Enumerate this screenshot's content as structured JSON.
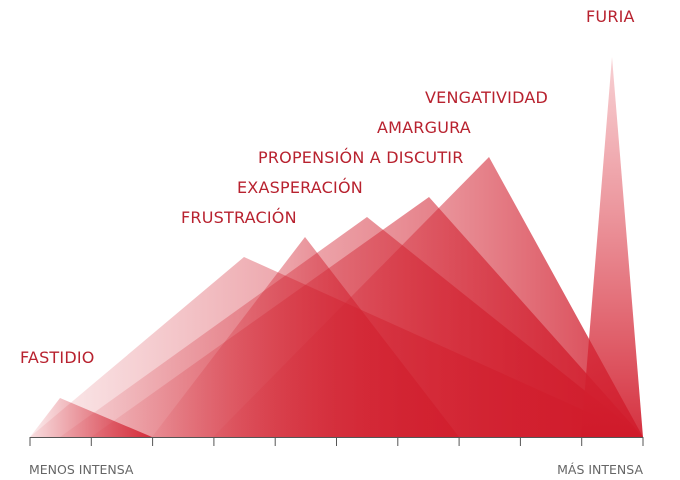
{
  "emotions": [
    {
      "label": "FASTIDIO"
    },
    {
      "label": "FRUSTRACIÓN"
    },
    {
      "label": "EXASPERACIÓN"
    },
    {
      "label": "PROPENSIÓN A DISCUTIR"
    },
    {
      "label": "AMARGURA"
    },
    {
      "label": "VENGATIVIDAD"
    },
    {
      "label": "FURIA"
    }
  ],
  "axis": {
    "start": "MENOS INTENSA",
    "end": "MÁS INTENSA"
  }
}
